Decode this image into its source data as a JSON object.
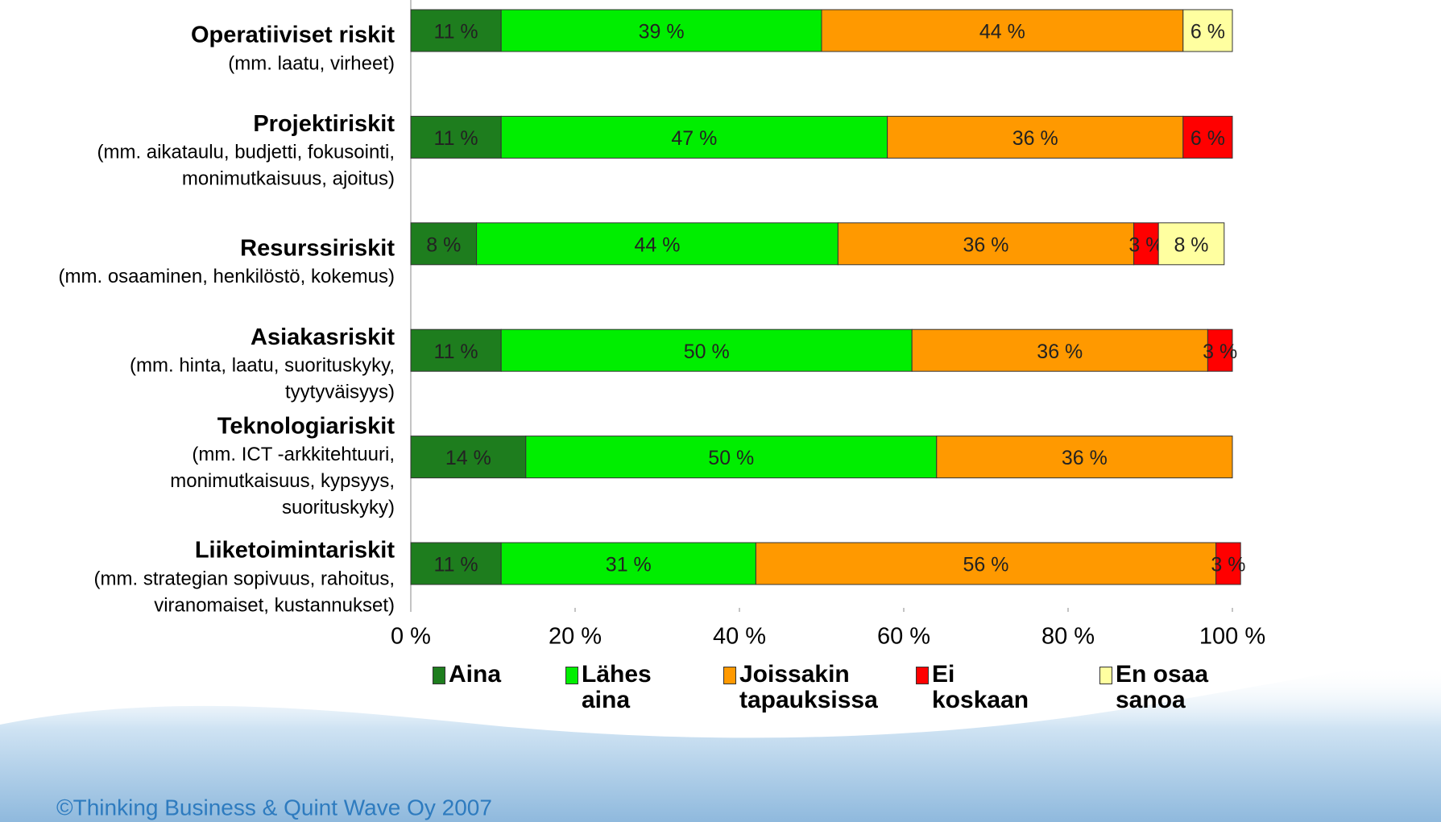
{
  "chart_data": {
    "type": "stacked-bar-horizontal",
    "categories": [
      "Operatiiviset riskit",
      "Projektiriskit",
      "Resurssiriskit",
      "Asiakasriskit",
      "Teknologiariskit",
      "Liiketoimintariskit"
    ],
    "category_descriptions": [
      [
        "(mm. laatu, virheet)"
      ],
      [
        "(mm. aikataulu, budjetti, fokusointi,",
        "monimutkaisuus, ajoitus)"
      ],
      [
        "(mm. osaaminen, henkilöstö, kokemus)"
      ],
      [
        "(mm. hinta, laatu, suorituskyky,",
        "tyytyväisyys)"
      ],
      [
        "(mm. ICT -arkkitehtuuri,",
        "monimutkaisuus, kypsyys,",
        "suorituskyky)"
      ],
      [
        "(mm. strategian sopivuus, rahoitus,",
        "viranomaiset, kustannukset)"
      ]
    ],
    "series": [
      {
        "name": "Aina",
        "color": "#1e7d1e",
        "values": [
          11,
          11,
          8,
          11,
          14,
          11
        ],
        "value_labels": [
          "11 %",
          "11 %",
          "8 %",
          "11 %",
          "14 %",
          "11 %"
        ]
      },
      {
        "name": "Lähes aina",
        "color": "#00ee00",
        "values": [
          39,
          47,
          44,
          50,
          50,
          31
        ],
        "value_labels": [
          "39 %",
          "47 %",
          "44 %",
          "50 %",
          "50 %",
          "31 %"
        ]
      },
      {
        "name": "Joissakin tapauksissa",
        "color": "#ff9900",
        "values": [
          44,
          36,
          36,
          36,
          36,
          56
        ],
        "value_labels": [
          "44 %",
          "36 %",
          "36 %",
          "36 %",
          "36 %",
          "56 %"
        ]
      },
      {
        "name": "Ei koskaan",
        "color": "#ff0000",
        "values": [
          null,
          6,
          3,
          3,
          null,
          3
        ],
        "value_labels": [
          null,
          "6 %",
          "3 %",
          "3 %",
          null,
          "3 %"
        ]
      },
      {
        "name": "En osaa sanoa",
        "color": "#ffffa0",
        "values": [
          6,
          null,
          8,
          null,
          null,
          null
        ],
        "value_labels": [
          "6 %",
          null,
          "8 %",
          null,
          null,
          null
        ]
      }
    ],
    "xlim": [
      0,
      100
    ],
    "xticks": [
      {
        "value": 0,
        "label": "0 %"
      },
      {
        "value": 20,
        "label": "20 %"
      },
      {
        "value": 40,
        "label": "40 %"
      },
      {
        "value": 60,
        "label": "60 %"
      },
      {
        "value": 80,
        "label": "80 %"
      },
      {
        "value": 100,
        "label": "100 %"
      }
    ],
    "legend": "bottom",
    "footer": "©Thinking Business & Quint Wave Oy 2007"
  }
}
